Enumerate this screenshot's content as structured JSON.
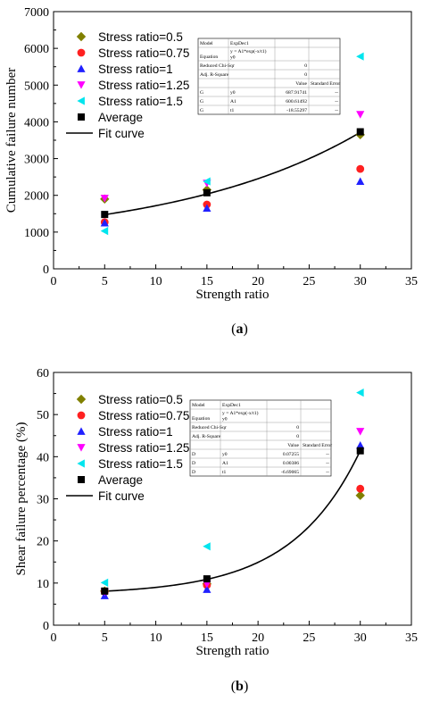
{
  "chart_data": [
    {
      "type": "scatter",
      "panel_label": "a",
      "xlabel": "Strength ratio",
      "ylabel": "Cumulative failure number",
      "xlim": [
        0,
        35
      ],
      "ylim": [
        0,
        7000
      ],
      "xticks": [
        0,
        5,
        10,
        15,
        20,
        25,
        30,
        35
      ],
      "yticks": [
        0,
        1000,
        2000,
        3000,
        4000,
        5000,
        6000,
        7000
      ],
      "legend_position": "top-left",
      "series": [
        {
          "name": "Stress ratio=0.5",
          "marker": "diamond",
          "color": "#808000",
          "x": [
            5,
            15,
            30
          ],
          "y": [
            1900,
            2150,
            3650
          ]
        },
        {
          "name": "Stress ratio=0.75",
          "marker": "circle",
          "color": "#ff2020",
          "x": [
            5,
            15,
            30
          ],
          "y": [
            1270,
            1750,
            2720
          ]
        },
        {
          "name": "Stress ratio=1",
          "marker": "triangle-up",
          "color": "#2020ff",
          "x": [
            5,
            15,
            30
          ],
          "y": [
            1250,
            1650,
            2380
          ]
        },
        {
          "name": "Stress ratio=1.25",
          "marker": "triangle-down",
          "color": "#ff00ff",
          "x": [
            5,
            15,
            30
          ],
          "y": [
            1920,
            2330,
            4200
          ]
        },
        {
          "name": "Stress ratio=1.5",
          "marker": "triangle-left",
          "color": "#00e5ee",
          "x": [
            5,
            15,
            30
          ],
          "y": [
            1030,
            2380,
            5780
          ]
        },
        {
          "name": "Average",
          "marker": "square",
          "color": "#000000",
          "x": [
            5,
            15,
            30
          ],
          "y": [
            1480,
            2070,
            3730
          ]
        }
      ],
      "fit": {
        "name": "Fit curve",
        "model": "expdec1",
        "y0": 687.91741,
        "A1": 600.61492,
        "t1": -18.55297,
        "x_range": [
          5,
          30
        ]
      },
      "fit_table": {
        "rows": [
          [
            "Model",
            "ExpDec1",
            "",
            ""
          ],
          [
            "Equation",
            "y = A1*exp(-x/t1) + y0",
            "",
            ""
          ],
          [
            "Reduced Chi-Sqr",
            "",
            "0",
            ""
          ],
          [
            "Adj. R-Square",
            "",
            "0",
            ""
          ],
          [
            "",
            "",
            "Value",
            "Standard Error"
          ],
          [
            "G",
            "y0",
            "687.91741",
            "--"
          ],
          [
            "G",
            "A1",
            "600.61492",
            "--"
          ],
          [
            "G",
            "t1",
            "-18.55297",
            "--"
          ]
        ]
      }
    },
    {
      "type": "scatter",
      "panel_label": "b",
      "xlabel": "Strength ratio",
      "ylabel": "Shear failure percentage (%)",
      "xlim": [
        0,
        35
      ],
      "ylim": [
        0,
        60
      ],
      "xticks": [
        0,
        5,
        10,
        15,
        20,
        25,
        30,
        35
      ],
      "yticks": [
        0,
        10,
        20,
        30,
        40,
        50,
        60
      ],
      "legend_position": "top-left",
      "series": [
        {
          "name": "Stress ratio=0.5",
          "marker": "diamond",
          "color": "#808000",
          "x": [
            5,
            15,
            30
          ],
          "y": [
            8.1,
            9.8,
            30.8
          ]
        },
        {
          "name": "Stress ratio=0.75",
          "marker": "circle",
          "color": "#ff2020",
          "x": [
            5,
            15,
            30
          ],
          "y": [
            7.9,
            9.5,
            32.4
          ]
        },
        {
          "name": "Stress ratio=1",
          "marker": "triangle-up",
          "color": "#2020ff",
          "x": [
            5,
            15,
            30
          ],
          "y": [
            7.0,
            8.5,
            42.7
          ]
        },
        {
          "name": "Stress ratio=1.25",
          "marker": "triangle-down",
          "color": "#ff00ff",
          "x": [
            5,
            15,
            30
          ],
          "y": [
            7.9,
            9.8,
            46.0
          ]
        },
        {
          "name": "Stress ratio=1.5",
          "marker": "triangle-left",
          "color": "#00e5ee",
          "x": [
            5,
            15,
            30
          ],
          "y": [
            10.1,
            18.7,
            55.2
          ]
        },
        {
          "name": "Average",
          "marker": "square",
          "color": "#000000",
          "x": [
            5,
            15,
            30
          ],
          "y": [
            8.1,
            11.0,
            41.4
          ]
        }
      ],
      "fit": {
        "name": "Fit curve",
        "model": "expdec1",
        "y0": 0.07255,
        "A1": 0.00386,
        "t1": -6.69065,
        "x_range": [
          5,
          30
        ]
      },
      "fit_table": {
        "rows": [
          [
            "Model",
            "ExpDec1",
            "",
            ""
          ],
          [
            "Equation",
            "y = A1*exp(-x/t1) + y0",
            "",
            ""
          ],
          [
            "Reduced Chi-Sqr",
            "",
            "0",
            ""
          ],
          [
            "Adj. R-Square",
            "",
            "0",
            ""
          ],
          [
            "",
            "",
            "Value",
            "Standard Error"
          ],
          [
            "D",
            "y0",
            "0.07255",
            "--"
          ],
          [
            "D",
            "A1",
            "0.00386",
            "--"
          ],
          [
            "D",
            "t1",
            "-6.69065",
            "--"
          ]
        ]
      }
    }
  ]
}
